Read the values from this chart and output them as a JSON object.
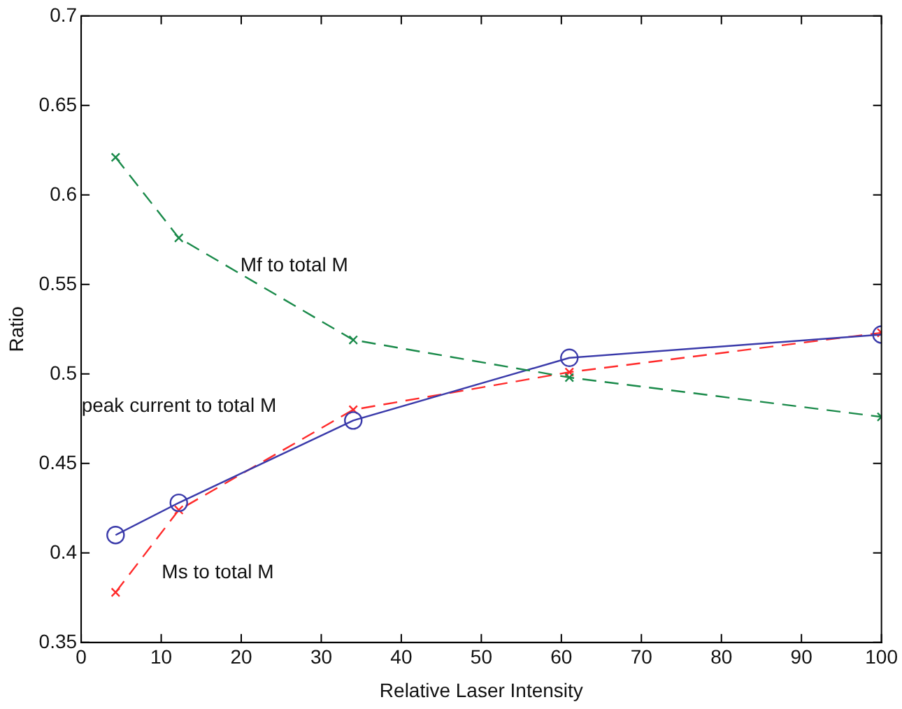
{
  "chart_data": {
    "type": "line",
    "xlabel": "Relative Laser Intensity",
    "ylabel": "Ratio",
    "x": [
      4.3,
      12.2,
      34,
      61,
      100
    ],
    "xlim": [
      0,
      100
    ],
    "xticks": [
      0,
      10,
      20,
      30,
      40,
      50,
      60,
      70,
      80,
      90,
      100
    ],
    "ylim": [
      0.35,
      0.7
    ],
    "yticks": [
      0.35,
      0.4,
      0.45,
      0.5,
      0.55,
      0.6,
      0.65,
      0.7
    ],
    "grid": false,
    "legend": false,
    "series": [
      {
        "name": "Mf to total M",
        "color": "#1a8a4a",
        "marker": "cross",
        "line_style": "dashed",
        "values": [
          0.621,
          0.576,
          0.519,
          0.498,
          0.476
        ]
      },
      {
        "name": "peak current to total M",
        "color": "#3a3aaa",
        "marker": "circle",
        "line_style": "solid",
        "values": [
          0.41,
          0.428,
          0.474,
          0.509,
          0.522
        ]
      },
      {
        "name": "Ms to total M",
        "color": "#ff2a2a",
        "marker": "cross",
        "line_style": "dashed",
        "values": [
          0.378,
          0.424,
          0.48,
          0.501,
          0.523
        ]
      }
    ]
  }
}
